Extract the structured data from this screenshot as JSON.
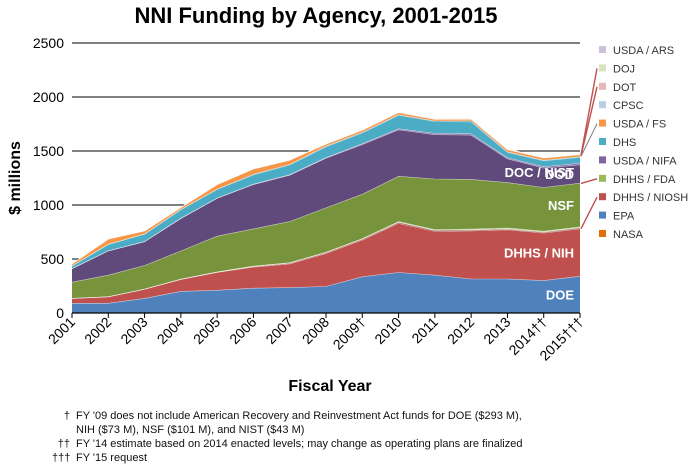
{
  "chart_data": {
    "type": "area",
    "stacked": true,
    "title": "NNI Funding by Agency, 2001-2015",
    "xlabel": "Fiscal Year",
    "ylabel": "$ millions",
    "ylim": [
      0,
      2500
    ],
    "yticks": [
      0,
      500,
      1000,
      1500,
      2000,
      2500
    ],
    "gridlines": "horizontal",
    "legend_position": "right",
    "categories": [
      "2001",
      "2002",
      "2003",
      "2004",
      "2005",
      "2006",
      "2007",
      "2008",
      "2009†",
      "2010",
      "2011",
      "2012",
      "2013",
      "2014††",
      "2015†††"
    ],
    "series": [
      {
        "name": "DOE",
        "label": "DOE",
        "color": "#4f81bd",
        "values": [
          90,
          90,
          135,
          200,
          210,
          230,
          235,
          245,
          335,
          375,
          350,
          315,
          315,
          300,
          340
        ]
      },
      {
        "name": "DHHS / NIH",
        "label": "DHHS / NIH",
        "color": "#c0504d",
        "values": [
          45,
          60,
          85,
          110,
          165,
          195,
          220,
          305,
          340,
          455,
          405,
          445,
          455,
          440,
          440
        ]
      },
      {
        "name": "DHHS / NIOSH",
        "color": "#7f2320",
        "values": [
          0,
          0,
          0,
          2,
          3,
          5,
          6,
          7,
          7,
          8,
          8,
          8,
          7,
          7,
          7
        ]
      },
      {
        "name": "DHHS / FDA",
        "color": "#c3d69b",
        "values": [
          0,
          0,
          0,
          2,
          3,
          4,
          5,
          6,
          7,
          8,
          8,
          9,
          10,
          10,
          10
        ]
      },
      {
        "name": "NSF",
        "label": "NSF",
        "color": "#77933c",
        "values": [
          150,
          200,
          220,
          260,
          330,
          345,
          380,
          410,
          410,
          420,
          470,
          460,
          420,
          405,
          405
        ]
      },
      {
        "name": "DOD",
        "label": "DOD",
        "color": "#604a7b",
        "values": [
          125,
          225,
          220,
          300,
          350,
          410,
          430,
          460,
          460,
          430,
          410,
          410,
          220,
          180,
          170
        ]
      },
      {
        "name": "USDA / NIFA",
        "color": "#8064a2",
        "values": [
          0,
          0,
          1,
          3,
          3,
          4,
          4,
          6,
          8,
          10,
          12,
          12,
          10,
          12,
          14
        ]
      },
      {
        "name": "DHS",
        "color": "#4bacc6",
        "values": [
          25,
          60,
          70,
          80,
          80,
          85,
          90,
          100,
          100,
          125,
          110,
          110,
          50,
          55,
          55
        ]
      },
      {
        "name": "NIST",
        "color": "#31859c",
        "values": [
          0,
          0,
          0,
          0,
          0,
          5,
          5,
          5,
          5,
          5,
          5,
          10,
          5,
          5,
          5
        ]
      },
      {
        "name": "USDA / FS",
        "color": "#f79646",
        "values": [
          20,
          50,
          30,
          20,
          45,
          50,
          40,
          20,
          20,
          20,
          15,
          15,
          20,
          20,
          20
        ]
      },
      {
        "name": "CPSC",
        "color": "#b9cde5",
        "values": [
          0,
          0,
          0,
          0,
          0,
          0,
          0,
          0,
          1,
          1,
          1,
          1,
          1,
          1,
          1
        ]
      },
      {
        "name": "DOT",
        "color": "#e6b9b8",
        "values": [
          0,
          0,
          0,
          0,
          0,
          1,
          1,
          1,
          1,
          1,
          2,
          2,
          2,
          2,
          2
        ]
      },
      {
        "name": "DOJ",
        "color": "#d7e4bd",
        "values": [
          0,
          0,
          0,
          0,
          1,
          1,
          1,
          1,
          1,
          1,
          1,
          1,
          1,
          1,
          1
        ]
      },
      {
        "name": "USDA / ARS",
        "color": "#ccc1da",
        "values": [
          0,
          0,
          0,
          1,
          2,
          2,
          3,
          3,
          3,
          4,
          4,
          4,
          4,
          4,
          4
        ]
      },
      {
        "name": "NASA",
        "color": "#e46c0a",
        "values": [
          0,
          0,
          0,
          0,
          0,
          0,
          0,
          0,
          0,
          0,
          0,
          0,
          0,
          0,
          0
        ]
      }
    ],
    "legend": [
      "USDA / ARS",
      "DOJ",
      "DOT",
      "CPSC",
      "USDA / FS",
      "DHS",
      "USDA / NIFA",
      "DHHS / FDA",
      "DHHS / NIOSH",
      "EPA",
      "NASA"
    ],
    "legend_colors": [
      "#ccc1da",
      "#d7e4bd",
      "#e6b9b8",
      "#b9cde5",
      "#f79646",
      "#4bacc6",
      "#8064a2",
      "#9bbb59",
      "#c0504d",
      "#4f81bd",
      "#e46c0a"
    ],
    "callout_label": "DOC / NIST"
  },
  "footnotes": [
    {
      "mark": "†",
      "text": "FY '09 does not include American Recovery and Reinvestment Act funds for DOE ($293 M),"
    },
    {
      "mark": "",
      "text": "NIH ($73 M), NSF ($101 M), and NIST ($43 M)"
    },
    {
      "mark": "††",
      "text": "FY '14 estimate based on 2014 enacted levels; may change as operating plans are finalized"
    },
    {
      "mark": "†††",
      "text": "FY '15 request"
    }
  ]
}
